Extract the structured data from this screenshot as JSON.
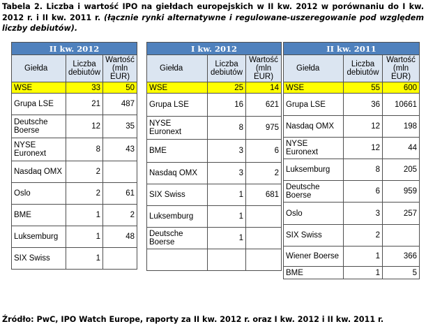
{
  "caption": {
    "bold": "Tabela 2. Liczba i wartość IPO na giełdach europejskich w II kw. 2012 w porównaniu do I kw. 2012 r. i II kw. 2011 r.",
    "italic": "(łącznie rynki alternatywne i regulowane-uszeregowanie pod względem liczby debiutów)."
  },
  "source": "Źródło: PwC, IPO Watch Europe, raporty za II kw. 2012 r. oraz I kw. 2012 i II kw. 2011 r.",
  "columns": {
    "exchange": "Giełda",
    "count": "Liczba debiutów",
    "value": "Wartość (mln EUR)"
  },
  "tables": [
    {
      "period": "II kw. 2012",
      "rows": [
        {
          "exchange": "WSE",
          "count": "33",
          "value": "50"
        },
        {
          "exchange": "Grupa LSE",
          "count": "21",
          "value": "487"
        },
        {
          "exchange": "Deutsche Boerse",
          "count": "12",
          "value": "35"
        },
        {
          "exchange": "NYSE Euronext",
          "count": "8",
          "value": "43"
        },
        {
          "exchange": "Nasdaq OMX",
          "count": "2",
          "value": ""
        },
        {
          "exchange": "Oslo",
          "count": "2",
          "value": "61"
        },
        {
          "exchange": "BME",
          "count": "1",
          "value": "2"
        },
        {
          "exchange": "Luksemburg",
          "count": "1",
          "value": "48"
        },
        {
          "exchange": "SIX Swiss",
          "count": "1",
          "value": ""
        }
      ]
    },
    {
      "period": "I kw. 2012",
      "rows": [
        {
          "exchange": "WSE",
          "count": "25",
          "value": "14"
        },
        {
          "exchange": "Grupa LSE",
          "count": "16",
          "value": "621"
        },
        {
          "exchange": "NYSE Euronext",
          "count": "8",
          "value": "975"
        },
        {
          "exchange": "BME",
          "count": "3",
          "value": "6"
        },
        {
          "exchange": "Nasdaq OMX",
          "count": "3",
          "value": "2"
        },
        {
          "exchange": "SIX Swiss",
          "count": "1",
          "value": "681"
        },
        {
          "exchange": "Luksemburg",
          "count": "1",
          "value": ""
        },
        {
          "exchange": "Deutsche Boerse",
          "count": "1",
          "value": ""
        },
        {
          "exchange": "",
          "count": "",
          "value": ""
        }
      ]
    },
    {
      "period": "II kw. 2011",
      "rows": [
        {
          "exchange": "WSE",
          "count": "55",
          "value": "600"
        },
        {
          "exchange": "Grupa LSE",
          "count": "36",
          "value": "10661"
        },
        {
          "exchange": "Nasdaq OMX",
          "count": "12",
          "value": "198"
        },
        {
          "exchange": "NYSE Euronext",
          "count": "12",
          "value": "44"
        },
        {
          "exchange": "Luksemburg",
          "count": "8",
          "value": "205"
        },
        {
          "exchange": "Deutsche Boerse",
          "count": "6",
          "value": "959"
        },
        {
          "exchange": "Oslo",
          "count": "3",
          "value": "257"
        },
        {
          "exchange": "SIX Swiss",
          "count": "2",
          "value": ""
        },
        {
          "exchange": "Wiener Boerse",
          "count": "1",
          "value": "366"
        },
        {
          "exchange": "BME",
          "count": "1",
          "value": "5"
        }
      ]
    }
  ]
}
